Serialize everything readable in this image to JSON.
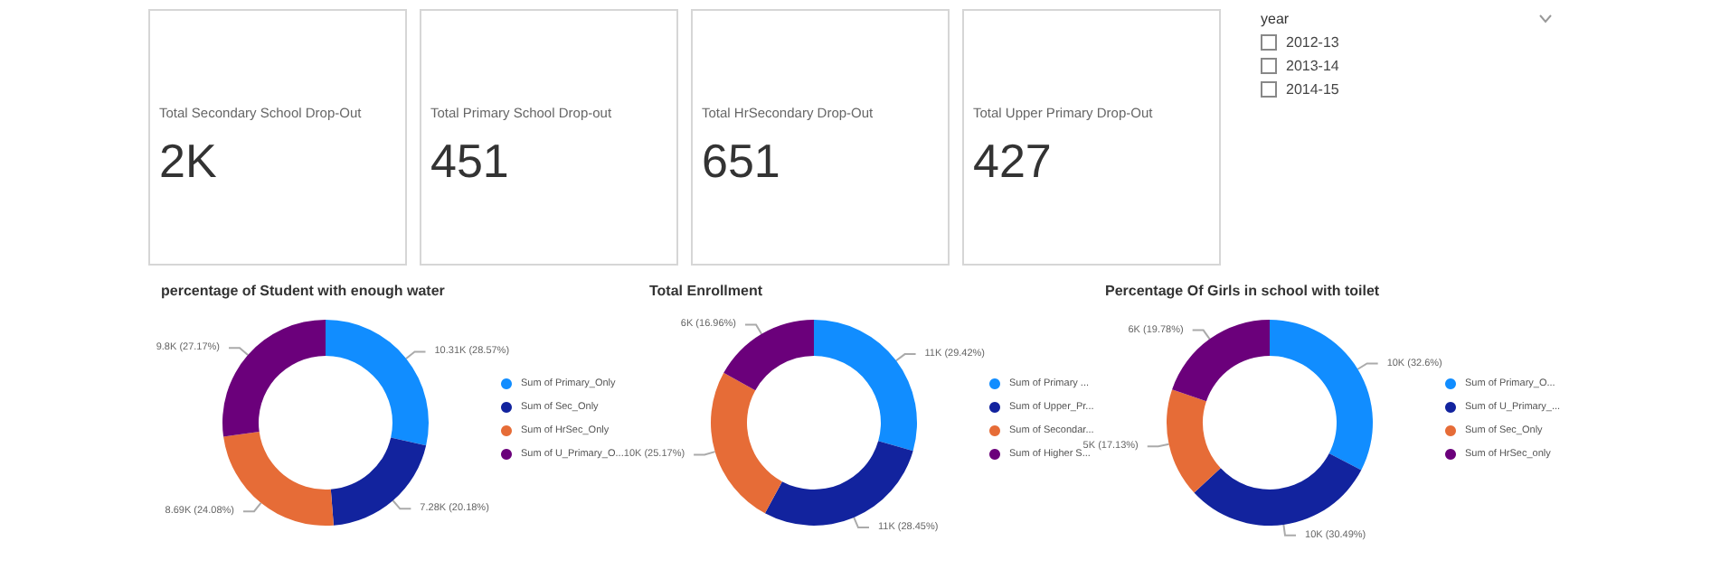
{
  "chart_data": [
    {
      "type": "other",
      "title": "Total Secondary School Drop-Out",
      "annotations": [
        "2K"
      ]
    },
    {
      "type": "other",
      "title": "Total Primary School Drop-out",
      "annotations": [
        "451"
      ]
    },
    {
      "type": "other",
      "title": "Total HrSecondary Drop-Out",
      "annotations": [
        "651"
      ]
    },
    {
      "type": "other",
      "title": "Total Upper Primary Drop-Out",
      "annotations": [
        "427"
      ]
    },
    {
      "type": "other",
      "title": "year",
      "categories": [
        "2012-13",
        "2013-14",
        "2014-15"
      ]
    },
    {
      "type": "donut",
      "title": "percentage of Student with enough water",
      "legend": "right",
      "categories": [
        "Sum of Primary_Only",
        "Sum of Sec_Only",
        "Sum of HrSec_Only",
        "Sum of U_Primary_O..."
      ],
      "values": [
        28.57,
        20.18,
        24.08,
        27.17
      ],
      "value_labels": [
        "10.31K (28.57%)",
        "7.28K (20.18%)",
        "8.69K (24.08%)",
        "9.8K (27.17%)"
      ],
      "colors": [
        "#118dff",
        "#12239e",
        "#e66c37",
        "#6b007b"
      ]
    },
    {
      "type": "donut",
      "title": "Total Enrollment",
      "legend": "right",
      "categories": [
        "Sum of Primary ...",
        "Sum of Upper_Pr...",
        "Sum of Secondar...",
        "Sum of Higher S..."
      ],
      "values": [
        29.42,
        28.45,
        25.17,
        16.96
      ],
      "value_labels": [
        "11K (29.42%)",
        "11K (28.45%)",
        "10K (25.17%)",
        "6K (16.96%)"
      ],
      "colors": [
        "#118dff",
        "#12239e",
        "#e66c37",
        "#6b007b"
      ]
    },
    {
      "type": "donut",
      "title": "Percentage Of Girls in school with toilet",
      "legend": "right",
      "categories": [
        "Sum of Primary_O...",
        "Sum of U_Primary_...",
        "Sum of Sec_Only",
        "Sum of HrSec_only"
      ],
      "values": [
        32.6,
        30.49,
        17.13,
        19.78
      ],
      "value_labels": [
        "10K (32.6%)",
        "10K (30.49%)",
        "5K (17.13%)",
        "6K (19.78%)"
      ],
      "colors": [
        "#118dff",
        "#12239e",
        "#e66c37",
        "#6b007b"
      ]
    }
  ]
}
